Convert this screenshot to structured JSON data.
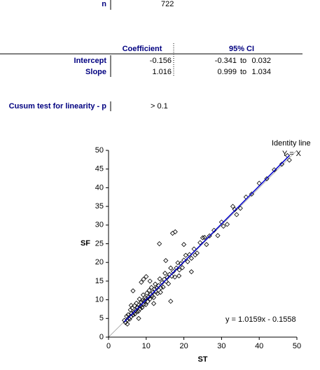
{
  "stats": {
    "n_label": "n",
    "n": 722,
    "columns": [
      "Coefficient",
      "95% CI"
    ],
    "rows": [
      {
        "label": "Intercept",
        "coefficient": -0.156,
        "ci_low": -0.341,
        "ci_high": 0.032
      },
      {
        "label": "Slope",
        "coefficient": 1.016,
        "ci_low": 0.999,
        "ci_high": 1.034
      }
    ],
    "ci_separator": "to",
    "cusum_label": "Cusum test for linearity - p",
    "cusum_value": "> 0.1"
  },
  "chart_data": {
    "type": "scatter",
    "xlabel": "ST",
    "ylabel": "SF",
    "xlim": [
      0,
      50
    ],
    "ylim": [
      0,
      50
    ],
    "xticks": [
      0,
      10,
      20,
      30,
      40,
      50
    ],
    "yticks": [
      0,
      5,
      10,
      15,
      20,
      25,
      30,
      35,
      40,
      45,
      50
    ],
    "identity_label": "Identity line",
    "identity_eq": "Y = X",
    "identity_color": "#999999",
    "fit": {
      "label": "y = 1.0159x - 0.1558",
      "slope": 1.0159,
      "intercept": -0.1558,
      "color": "#0000cc"
    },
    "series": [
      {
        "color": "#000000",
        "x": [
          4.2,
          4.5,
          4.8,
          5,
          5.2,
          5.4,
          5.6,
          5.8,
          6,
          6.1,
          6.3,
          6.5,
          6.7,
          6.9,
          7,
          7.2,
          7.4,
          7.5,
          7.7,
          7.9,
          8,
          8.2,
          8.4,
          8.5,
          8.7,
          8.9,
          9,
          9.2,
          9.4,
          9.5,
          9.7,
          9.9,
          10,
          10.2,
          10.4,
          10.6,
          10.8,
          11,
          11.2,
          11.4,
          11.6,
          11.8,
          12,
          12.2,
          12.4,
          12.6,
          12.8,
          13,
          13.3,
          13.6,
          13.9,
          14.2,
          14.5,
          14.8,
          15,
          15.3,
          15.6,
          15.9,
          16.2,
          16.5,
          16.8,
          17.2,
          17.6,
          18,
          18.4,
          18.8,
          19.2,
          19.6,
          20,
          20.5,
          21,
          21.5,
          22,
          22.7,
          23.5,
          24.3,
          25,
          26,
          26.8,
          28,
          29,
          30,
          31.5,
          33,
          34,
          35,
          36.5,
          38,
          40,
          42,
          44,
          46,
          47.5,
          48,
          13.5,
          17,
          17.7,
          15.2,
          9.3,
          8.7,
          6.5,
          10,
          16.5,
          12,
          13.8,
          18.7,
          22,
          25.5,
          30.5,
          33.5,
          11,
          8,
          6,
          5,
          20,
          23
        ],
        "values": [
          4.5,
          3.9,
          5.6,
          4.6,
          6,
          5,
          4.8,
          7.3,
          5.5,
          6.4,
          7.8,
          5.9,
          6.6,
          8.4,
          6.2,
          7.1,
          9.1,
          6.8,
          7.9,
          6.9,
          8.6,
          10.2,
          7.6,
          8.3,
          9.4,
          7.9,
          9.8,
          11.3,
          8.8,
          9.6,
          10.6,
          8.7,
          10.3,
          11.8,
          9.5,
          10.7,
          12.5,
          10.2,
          11.4,
          13.3,
          11,
          12,
          10.6,
          12.9,
          14.2,
          12.1,
          13.1,
          11.7,
          13.8,
          15.6,
          13.2,
          14.6,
          13.4,
          15.5,
          17.1,
          14.9,
          16,
          14.3,
          16.8,
          18.5,
          16.3,
          17.6,
          16.1,
          18.5,
          19.9,
          18,
          19.7,
          18.6,
          20.6,
          21.9,
          20.2,
          22.1,
          21.1,
          23.6,
          22.5,
          25.3,
          26.6,
          24.8,
          27.1,
          28.6,
          27.2,
          30.8,
          30.2,
          35,
          32.8,
          34.5,
          37.5,
          38.3,
          41.2,
          42.4,
          44.8,
          46.3,
          48.6,
          47.4,
          25,
          27.8,
          28.2,
          20.5,
          15.5,
          14.7,
          12.4,
          16.2,
          9.6,
          9,
          12,
          16.4,
          17.5,
          26.7,
          29.7,
          34.2,
          15,
          5,
          8.5,
          3.5,
          24.8,
          22
        ]
      }
    ]
  }
}
